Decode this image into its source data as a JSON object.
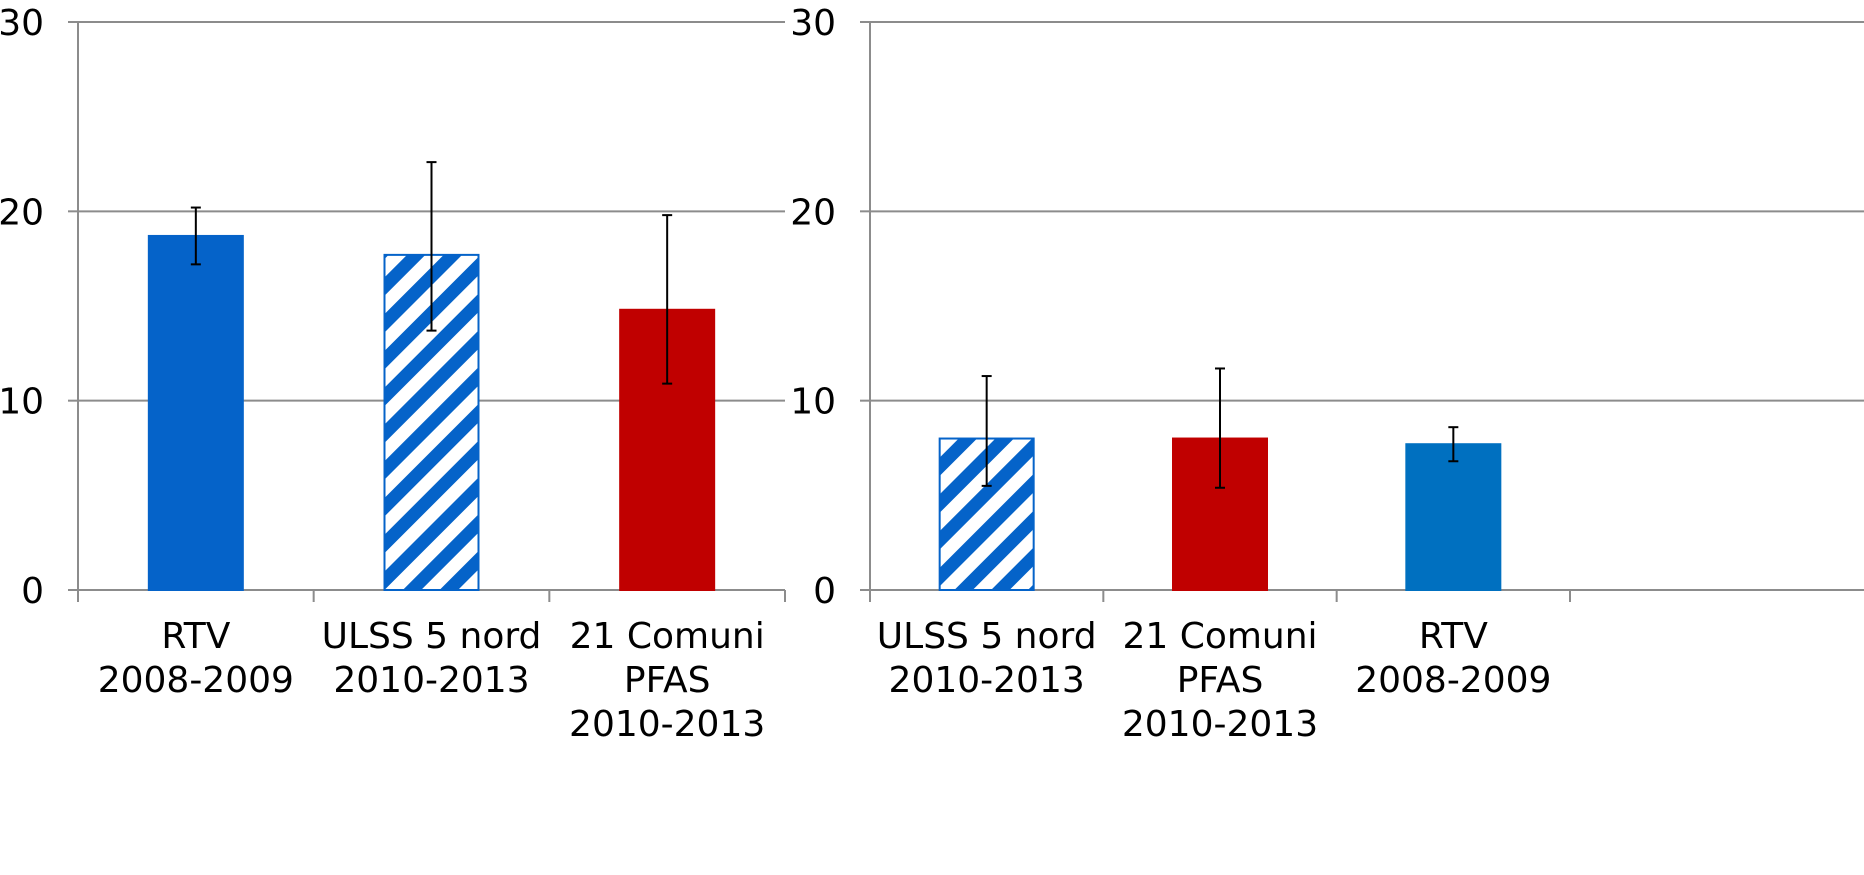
{
  "chart_data": [
    {
      "type": "bar",
      "categories": [
        [
          "RTV",
          "2008-2009"
        ],
        [
          "ULSS 5 nord",
          "2010-2013"
        ],
        [
          "21 Comuni",
          "PFAS",
          "2010-2013"
        ]
      ],
      "values": [
        18.7,
        17.7,
        14.8
      ],
      "error_low": [
        17.2,
        13.7,
        10.9
      ],
      "error_high": [
        20.2,
        22.6,
        19.8
      ],
      "fills": [
        {
          "color": "#0563C9",
          "pattern": "solid"
        },
        {
          "color": "#0563C9",
          "pattern": "diagonal-stripes"
        },
        {
          "color": "#C00000",
          "pattern": "solid"
        }
      ],
      "ylim": [
        0,
        30
      ],
      "yticks": [
        0,
        10,
        20,
        30
      ],
      "grid": true,
      "title": "",
      "xlabel": "",
      "ylabel": ""
    },
    {
      "type": "bar",
      "categories": [
        [
          "ULSS 5 nord",
          "2010-2013"
        ],
        [
          "21 Comuni",
          "PFAS",
          "2010-2013"
        ],
        [
          "RTV",
          "2008-2009"
        ]
      ],
      "values": [
        8.0,
        8.0,
        7.7
      ],
      "error_low": [
        5.5,
        5.4,
        6.8
      ],
      "error_high": [
        11.3,
        11.7,
        8.6
      ],
      "fills": [
        {
          "color": "#0563C9",
          "pattern": "diagonal-stripes"
        },
        {
          "color": "#C00000",
          "pattern": "solid"
        },
        {
          "color": "#0070C0",
          "pattern": "solid"
        }
      ],
      "ylim": [
        0,
        30
      ],
      "yticks": [
        0,
        10,
        20,
        30
      ],
      "grid": true,
      "title": "",
      "xlabel": "",
      "ylabel": ""
    }
  ],
  "colors": {
    "gridline": "#8C8C8C",
    "axis": "#8C8C8C",
    "error_bar": "#000000"
  }
}
